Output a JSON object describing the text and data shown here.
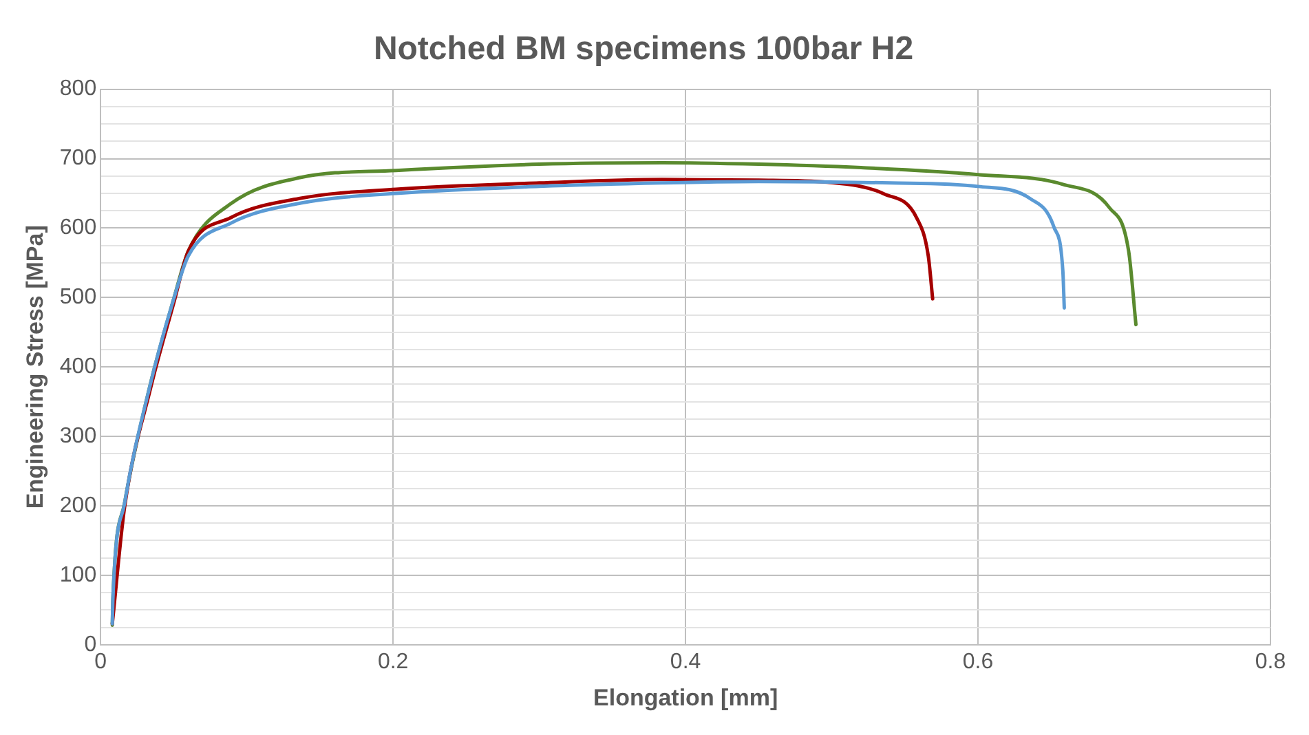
{
  "chart_data": {
    "type": "line",
    "title": "Notched BM specimens 100bar H2",
    "xlabel": "Elongation [mm]",
    "ylabel": "Engineering Stress [MPa]",
    "xlim": [
      0,
      0.8
    ],
    "xticks": [
      0,
      0.2,
      0.4,
      0.6,
      0.8
    ],
    "ylim": [
      0,
      800
    ],
    "yticks": [
      0,
      {
        "value": 25,
        "label": null
      },
      {
        "value": 50,
        "label": null
      },
      {
        "value": 75,
        "label": null
      },
      100,
      {
        "value": 125,
        "label": null
      },
      {
        "value": 150,
        "label": null
      },
      {
        "value": 175,
        "label": null
      },
      200,
      {
        "value": 225,
        "label": null
      },
      {
        "value": 250,
        "label": null
      },
      {
        "value": 275,
        "label": null
      },
      300,
      {
        "value": 325,
        "label": null
      },
      {
        "value": 350,
        "label": null
      },
      {
        "value": 375,
        "label": null
      },
      400,
      {
        "value": 425,
        "label": null
      },
      {
        "value": 450,
        "label": null
      },
      {
        "value": 475,
        "label": null
      },
      500,
      {
        "value": 525,
        "label": null
      },
      {
        "value": 550,
        "label": null
      },
      {
        "value": 575,
        "label": null
      },
      600,
      {
        "value": 625,
        "label": null
      },
      {
        "value": 650,
        "label": null
      },
      {
        "value": 675,
        "label": null
      },
      700,
      {
        "value": 725,
        "label": null
      },
      {
        "value": 750,
        "label": null
      },
      {
        "value": 775,
        "label": null
      },
      800
    ],
    "grid": true,
    "legend": false,
    "marker": "none",
    "line_style": "solid",
    "series": [
      {
        "color": "#5b9bd5",
        "x": [
          0.008,
          0.0084,
          0.0164,
          0.034,
          0.05,
          0.06,
          0.089,
          0.137,
          0.202,
          0.3,
          0.384,
          0.45,
          0.54,
          0.6,
          0.636,
          0.652,
          0.658,
          0.659
        ],
        "values": [
          30,
          66,
          204,
          375,
          498,
          560,
          607,
          636,
          650,
          660,
          665,
          667,
          665,
          660,
          642,
          601,
          539,
          485
        ]
      },
      {
        "color": "#a50000",
        "x": [
          0.008,
          0.0164,
          0.034,
          0.05,
          0.06,
          0.089,
          0.137,
          0.202,
          0.3,
          0.384,
          0.45,
          0.497,
          0.536,
          0.558,
          0.566,
          0.569
        ],
        "values": [
          30,
          198,
          368,
          492,
          567,
          615,
          643,
          656,
          665,
          670,
          669,
          666,
          649,
          615,
          560,
          498
        ]
      },
      {
        "color": "#5a8a2e",
        "x": [
          0.008,
          0.0084,
          0.0164,
          0.034,
          0.05,
          0.06,
          0.089,
          0.137,
          0.202,
          0.3,
          0.384,
          0.45,
          0.52,
          0.6,
          0.658,
          0.69,
          0.703,
          0.708
        ],
        "values": [
          28,
          66,
          204,
          375,
          498,
          567,
          635,
          673,
          683,
          692,
          694,
          692,
          687,
          677,
          663,
          629,
          567,
          461
        ]
      }
    ]
  }
}
